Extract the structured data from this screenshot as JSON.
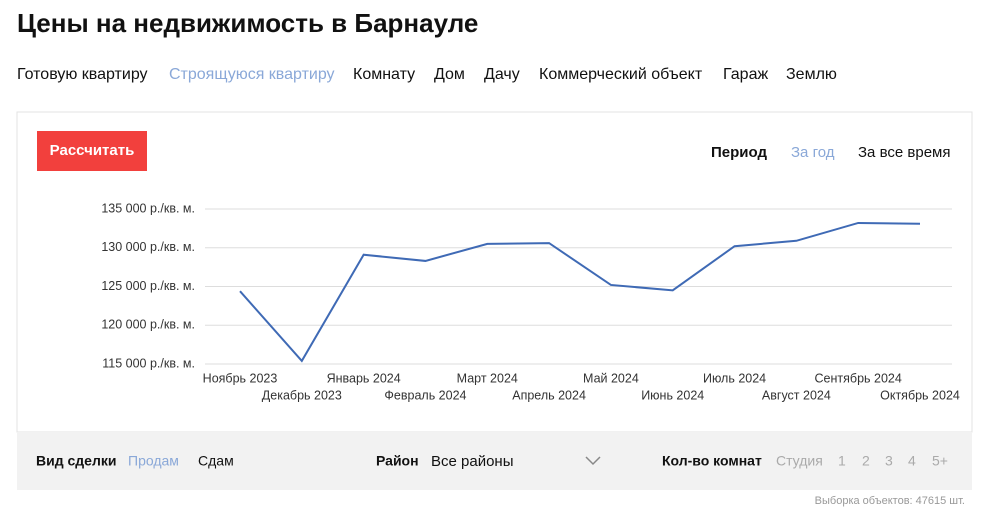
{
  "header": {
    "title": "Цены на недвижимость в Барнауле"
  },
  "tabs": [
    "Готовую квартиру",
    "Строящуюся квартиру",
    "Комнату",
    "Дом",
    "Дачу",
    "Коммерческий объект",
    "Гараж",
    "Землю"
  ],
  "controls": {
    "button": "Рассчитать",
    "period_label": "Период",
    "period_options": [
      "За год",
      "За все время"
    ]
  },
  "chart_data": {
    "type": "line",
    "categories": [
      "Ноябрь 2023",
      "Декабрь 2023",
      "Январь 2024",
      "Февраль 2024",
      "Март 2024",
      "Апрель 2024",
      "Май 2024",
      "Июнь 2024",
      "Июль 2024",
      "Август 2024",
      "Сентябрь 2024",
      "Октябрь 2024"
    ],
    "series": [
      {
        "color": "#3f6ab5",
        "values": [
          124400,
          115400,
          129100,
          128300,
          130500,
          130600,
          125200,
          124500,
          130200,
          130900,
          133200,
          133100
        ]
      }
    ],
    "ylim": [
      115000,
      135000
    ],
    "yticks": [
      {
        "value": 115000,
        "label": "115 000 р./кв. м."
      },
      {
        "value": 120000,
        "label": "120 000 р./кв. м."
      },
      {
        "value": 125000,
        "label": "125 000 р./кв. м."
      },
      {
        "value": 130000,
        "label": "130 000 р./кв. м."
      },
      {
        "value": 135000,
        "label": "135 000 р./кв. м."
      }
    ],
    "grid": true
  },
  "filters": {
    "deal_label": "Вид сделки",
    "deal_options": [
      "Продам",
      "Сдам"
    ],
    "district_label": "Район",
    "district_value": "Все районы",
    "rooms_label": "Кол-во комнат",
    "rooms_options": [
      "Студия",
      "1",
      "2",
      "3",
      "4",
      "5+"
    ]
  },
  "footer": "Выборка объектов: 47615 шт."
}
